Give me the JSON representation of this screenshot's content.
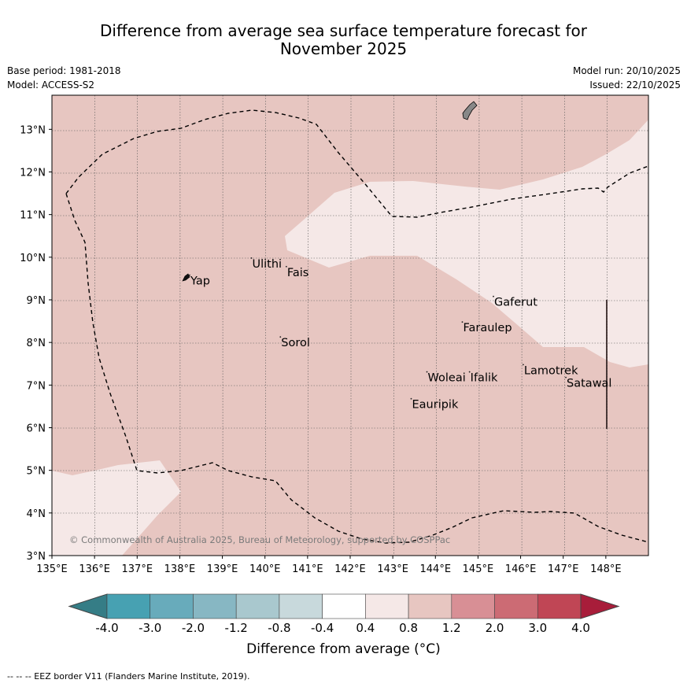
{
  "title": {
    "line1": "Difference from average sea surface temperature forecast for",
    "line2": "November 2025"
  },
  "meta": {
    "base_period": "Base period: 1981-2018",
    "model": "Model: ACCESS-S2",
    "model_run": "Model run: 20/10/2025",
    "issued": "Issued: 22/10/2025"
  },
  "map": {
    "lon_min": 135,
    "lon_max": 149,
    "lat_min": 3,
    "lat_max": 13.8,
    "lon_ticks": [
      "135°E",
      "136°E",
      "137°E",
      "138°E",
      "139°E",
      "140°E",
      "141°E",
      "142°E",
      "143°E",
      "144°E",
      "145°E",
      "146°E",
      "147°E",
      "148°E"
    ],
    "lat_ticks": [
      "3°N",
      "4°N",
      "5°N",
      "6°N",
      "7°N",
      "8°N",
      "9°N",
      "10°N",
      "11°N",
      "12°N",
      "13°N"
    ],
    "base_fill_category": "0.8 to 1.2",
    "light_fill_category": "0.4 to 0.8",
    "places": [
      {
        "name": "Yap",
        "lon": 138.25,
        "lat": 9.45
      },
      {
        "name": "Ulithi",
        "lon": 139.7,
        "lat": 9.85
      },
      {
        "name": "Fais",
        "lon": 140.52,
        "lat": 9.65
      },
      {
        "name": "Gaferut",
        "lon": 145.38,
        "lat": 8.95
      },
      {
        "name": "Faraulep",
        "lon": 144.65,
        "lat": 8.35
      },
      {
        "name": "Sorol",
        "lon": 140.38,
        "lat": 8.0
      },
      {
        "name": "Woleai",
        "lon": 143.82,
        "lat": 7.18
      },
      {
        "name": "Ifalik",
        "lon": 144.82,
        "lat": 7.18
      },
      {
        "name": "Lamotrek",
        "lon": 146.08,
        "lat": 7.35
      },
      {
        "name": "Satawal",
        "lon": 147.08,
        "lat": 7.05
      },
      {
        "name": "Eauripik",
        "lon": 143.45,
        "lat": 6.55
      }
    ],
    "copyright": "© Commonwealth of Australia 2025, Bureau of Meteorology, supported by COSPPac"
  },
  "colorbar": {
    "ticks": [
      "-4.0",
      "-3.0",
      "-2.0",
      "-1.2",
      "-0.8",
      "-0.4",
      "0.4",
      "0.8",
      "1.2",
      "2.0",
      "3.0",
      "4.0"
    ],
    "colors": [
      "#47a1b2",
      "#68abbb",
      "#87b7c3",
      "#a9c8ce",
      "#c8d9dc",
      "#ffffff",
      "#f5e8e7",
      "#e7c6c1",
      "#d88f95",
      "#cc6b74",
      "#c04655"
    ],
    "under_color": "#357d86",
    "over_color": "#a81d3a",
    "label": "Difference from average (°C)"
  },
  "footnote": "-- -- -- EEZ border V11 (Flanders Marine Institute, 2019)."
}
